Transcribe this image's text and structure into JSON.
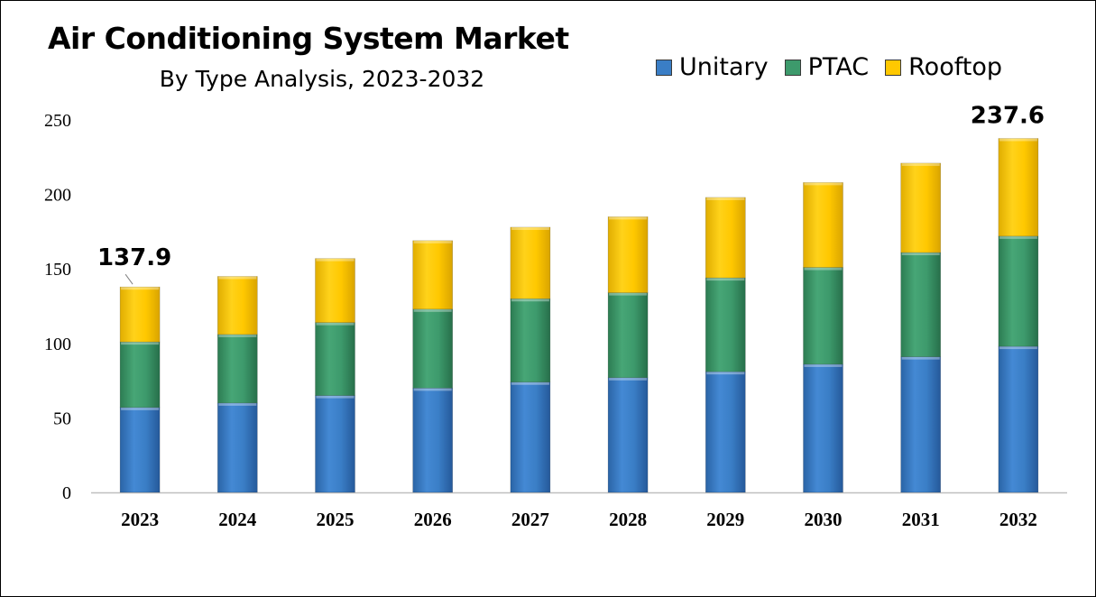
{
  "chart_data": {
    "type": "bar",
    "stacked": true,
    "title": "Air Conditioning System Market",
    "subtitle": "By Type Analysis, 2023-2032",
    "categories": [
      "2023",
      "2024",
      "2025",
      "2026",
      "2027",
      "2028",
      "2029",
      "2030",
      "2031",
      "2032"
    ],
    "series": [
      {
        "name": "Unitary",
        "color": "#3a7ec6",
        "values": [
          57,
          60,
          65,
          70,
          74,
          77,
          81,
          86,
          91,
          98
        ]
      },
      {
        "name": "PTAC",
        "color": "#3d9a6c",
        "values": [
          44,
          46,
          49,
          53,
          56,
          57,
          63,
          65,
          70,
          74
        ]
      },
      {
        "name": "Rooftop",
        "color": "#ffc800",
        "values": [
          36.9,
          39,
          43,
          46,
          48,
          51,
          54,
          57,
          60,
          65.6
        ]
      }
    ],
    "ylim": [
      0,
      250
    ],
    "yticks": [
      0,
      50,
      100,
      150,
      200,
      250
    ],
    "grid": false,
    "legend_position": "top-right",
    "annotations": [
      {
        "category": "2023",
        "text": "137.9"
      },
      {
        "category": "2032",
        "text": "237.6"
      }
    ]
  }
}
